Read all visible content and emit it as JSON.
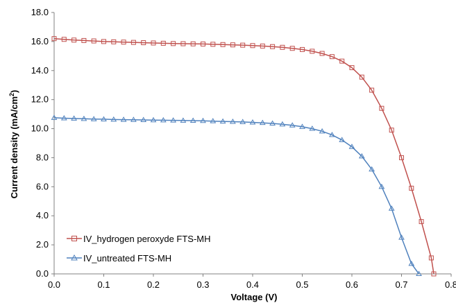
{
  "chart_data": {
    "type": "line",
    "xlabel": "Voltage (V)",
    "ylabel_main": "Current density (mA/cm",
    "ylabel_sup": "2",
    "ylabel_end": ")",
    "xlim": [
      0,
      0.8
    ],
    "ylim": [
      0,
      18
    ],
    "x_ticks": [
      "0.0",
      "0.1",
      "0.2",
      "0.3",
      "0.4",
      "0.5",
      "0.6",
      "0.7",
      "0.8"
    ],
    "y_ticks": [
      "0.0",
      "2.0",
      "4.0",
      "6.0",
      "8.0",
      "10.0",
      "12.0",
      "14.0",
      "16.0",
      "18.0"
    ],
    "grid": false,
    "legend_position": "bottom-left",
    "series": [
      {
        "name": "IV_hydrogen peroxyde FTS-MH",
        "color": "#c0504d",
        "marker": "square",
        "x": [
          0.0,
          0.02,
          0.04,
          0.06,
          0.08,
          0.1,
          0.12,
          0.14,
          0.16,
          0.18,
          0.2,
          0.22,
          0.24,
          0.26,
          0.28,
          0.3,
          0.32,
          0.34,
          0.36,
          0.38,
          0.4,
          0.42,
          0.44,
          0.46,
          0.48,
          0.5,
          0.52,
          0.54,
          0.56,
          0.58,
          0.6,
          0.62,
          0.64,
          0.66,
          0.68,
          0.7,
          0.72,
          0.74,
          0.76,
          0.765
        ],
        "y": [
          16.2,
          16.15,
          16.1,
          16.07,
          16.04,
          16.0,
          15.98,
          15.96,
          15.94,
          15.92,
          15.9,
          15.88,
          15.86,
          15.85,
          15.84,
          15.83,
          15.81,
          15.79,
          15.77,
          15.75,
          15.72,
          15.69,
          15.65,
          15.6,
          15.53,
          15.45,
          15.33,
          15.18,
          14.96,
          14.65,
          14.2,
          13.55,
          12.65,
          11.4,
          9.9,
          8.0,
          5.9,
          3.6,
          1.1,
          0.0
        ]
      },
      {
        "name": "IV_untreated FTS-MH",
        "color": "#4f81bd",
        "marker": "triangle",
        "x": [
          0.0,
          0.02,
          0.04,
          0.06,
          0.08,
          0.1,
          0.12,
          0.14,
          0.16,
          0.18,
          0.2,
          0.22,
          0.24,
          0.26,
          0.28,
          0.3,
          0.32,
          0.34,
          0.36,
          0.38,
          0.4,
          0.42,
          0.44,
          0.46,
          0.48,
          0.5,
          0.52,
          0.54,
          0.56,
          0.58,
          0.6,
          0.62,
          0.64,
          0.66,
          0.68,
          0.7,
          0.72,
          0.735
        ],
        "y": [
          10.75,
          10.72,
          10.7,
          10.68,
          10.66,
          10.65,
          10.63,
          10.62,
          10.61,
          10.6,
          10.59,
          10.58,
          10.57,
          10.56,
          10.55,
          10.54,
          10.52,
          10.5,
          10.48,
          10.46,
          10.43,
          10.4,
          10.36,
          10.3,
          10.23,
          10.13,
          10.0,
          9.82,
          9.57,
          9.22,
          8.75,
          8.1,
          7.2,
          6.0,
          4.5,
          2.5,
          0.7,
          0.0
        ]
      }
    ]
  }
}
